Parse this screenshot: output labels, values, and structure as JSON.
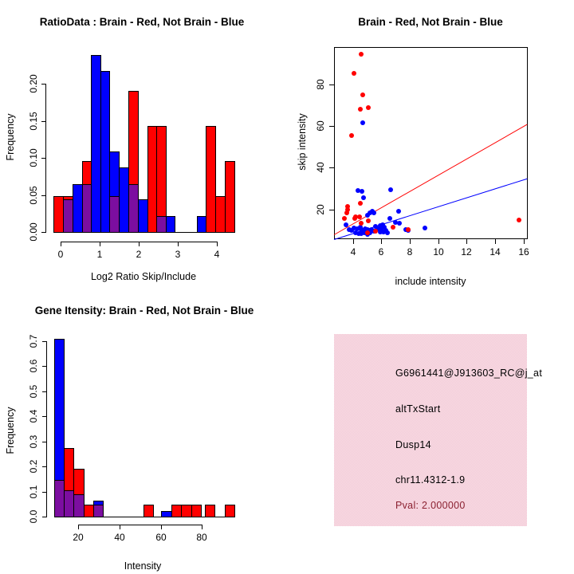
{
  "colors": {
    "red": "#ff0000",
    "blue": "#0000ff",
    "overlap_purple": "#7c0ea0",
    "info_bg": "#f3c9d6",
    "pval_text": "#8b2030",
    "axis": "#000000"
  },
  "chart_data": [
    {
      "id": "ratio_hist",
      "type": "bar",
      "title": "RatioData : Brain - Red, Not Brain - Blue",
      "xlabel": "Log2 Ratio Skip/Include",
      "ylabel": "Frequency",
      "xticks": [
        0,
        1,
        2,
        3,
        4
      ],
      "yticks": [
        "0.00",
        "0.05",
        "0.10",
        "0.15",
        "0.20"
      ],
      "xlim": [
        -0.2,
        4.45
      ],
      "ylim": [
        0,
        0.24
      ],
      "series": [
        {
          "name": "Brain",
          "color": "red"
        },
        {
          "name": "Not Brain",
          "color": "blue"
        }
      ],
      "bars": [
        {
          "x0": -0.18,
          "x1": 0.06,
          "red": 0.048,
          "blue": 0
        },
        {
          "x0": 0.06,
          "x1": 0.3,
          "red": 0.048,
          "blue": 0.044
        },
        {
          "x0": 0.3,
          "x1": 0.54,
          "red": 0,
          "blue": 0.065
        },
        {
          "x0": 0.54,
          "x1": 0.78,
          "red": 0.096,
          "blue": 0.065
        },
        {
          "x0": 0.78,
          "x1": 1.01,
          "red": 0,
          "blue": 0.239
        },
        {
          "x0": 1.01,
          "x1": 1.25,
          "red": 0,
          "blue": 0.218
        },
        {
          "x0": 1.25,
          "x1": 1.49,
          "red": 0.048,
          "blue": 0.109
        },
        {
          "x0": 1.49,
          "x1": 1.73,
          "red": 0,
          "blue": 0.087
        },
        {
          "x0": 1.73,
          "x1": 1.97,
          "red": 0.191,
          "blue": 0.065
        },
        {
          "x0": 1.97,
          "x1": 2.21,
          "red": 0,
          "blue": 0.044
        },
        {
          "x0": 2.21,
          "x1": 2.44,
          "red": 0.143,
          "blue": 0
        },
        {
          "x0": 2.44,
          "x1": 2.68,
          "red": 0.143,
          "blue": 0.022
        },
        {
          "x0": 2.68,
          "x1": 2.92,
          "red": 0,
          "blue": 0.022
        },
        {
          "x0": 3.48,
          "x1": 3.71,
          "red": 0,
          "blue": 0.022
        },
        {
          "x0": 3.71,
          "x1": 3.95,
          "red": 0.143,
          "blue": 0
        },
        {
          "x0": 3.95,
          "x1": 4.19,
          "red": 0.048,
          "blue": 0
        },
        {
          "x0": 4.19,
          "x1": 4.43,
          "red": 0.096,
          "blue": 0
        }
      ]
    },
    {
      "id": "intensity_scatter",
      "type": "scatter",
      "title": "Brain - Red, Not Brain - Blue",
      "xlabel": "include intensity",
      "ylabel": "skip intensity",
      "xticks": [
        4,
        6,
        8,
        10,
        12,
        14,
        16
      ],
      "yticks": [
        20,
        40,
        60,
        80
      ],
      "xlim": [
        2.69,
        16.28
      ],
      "ylim": [
        5.7,
        97.9
      ],
      "series": [
        {
          "name": "Brain",
          "color": "red"
        },
        {
          "name": "Not Brain",
          "color": "blue"
        }
      ],
      "red_points": [
        [
          4.6,
          94.5
        ],
        [
          4.1,
          85.5
        ],
        [
          4.7,
          75
        ],
        [
          4.5,
          68
        ],
        [
          5.1,
          69
        ],
        [
          3.9,
          55.5
        ],
        [
          3.6,
          21.5
        ],
        [
          3.65,
          19.8
        ],
        [
          3.55,
          18.2
        ],
        [
          3.4,
          15.5
        ],
        [
          4.5,
          23
        ],
        [
          4.2,
          16.6
        ],
        [
          4.45,
          16.3
        ],
        [
          4.15,
          15.8
        ],
        [
          5.1,
          14.5
        ],
        [
          4.6,
          13.2
        ],
        [
          5.0,
          8.8
        ],
        [
          5.6,
          9.5
        ],
        [
          6.8,
          11.5
        ],
        [
          7.9,
          10.2
        ],
        [
          15.7,
          15
        ]
      ],
      "blue_points": [
        [
          4.7,
          61.5
        ],
        [
          4.35,
          29
        ],
        [
          4.65,
          28.5
        ],
        [
          4.75,
          25.5
        ],
        [
          6.65,
          29.3
        ],
        [
          5.2,
          18.5
        ],
        [
          5.35,
          19
        ],
        [
          5.5,
          18.3
        ],
        [
          5.05,
          17.2
        ],
        [
          7.2,
          19
        ],
        [
          6.6,
          15.7
        ],
        [
          7.0,
          13.6
        ],
        [
          7.25,
          13.4
        ],
        [
          6.1,
          12.7
        ],
        [
          7.7,
          10.2
        ],
        [
          7.9,
          9.9
        ],
        [
          9.05,
          11
        ],
        [
          3.5,
          12.8
        ],
        [
          3.75,
          10.5
        ],
        [
          3.9,
          9.8
        ],
        [
          4.1,
          11.2
        ],
        [
          4.3,
          10.8
        ],
        [
          4.5,
          11.5
        ],
        [
          4.55,
          10.2
        ],
        [
          4.7,
          9.5
        ],
        [
          4.85,
          10.8
        ],
        [
          4.9,
          9.2
        ],
        [
          5.0,
          10.5
        ],
        [
          5.1,
          9.8
        ],
        [
          5.2,
          8.8
        ],
        [
          5.3,
          10.2
        ],
        [
          5.45,
          9.5
        ],
        [
          5.6,
          11.8
        ],
        [
          5.75,
          10.8
        ],
        [
          5.9,
          9.2
        ],
        [
          6.0,
          10.5
        ],
        [
          6.15,
          9.0
        ],
        [
          6.3,
          9.8
        ],
        [
          6.45,
          8.6
        ],
        [
          4.2,
          8.8
        ],
        [
          4.4,
          8.5
        ],
        [
          4.6,
          8.3
        ],
        [
          4.8,
          8.6
        ],
        [
          5.0,
          8.2
        ],
        [
          5.9,
          12.2
        ],
        [
          6.2,
          11.5
        ]
      ],
      "red_line": [
        [
          2.69,
          8
        ],
        [
          16.28,
          61
        ]
      ],
      "blue_line": [
        [
          2.69,
          5.8
        ],
        [
          16.28,
          35
        ]
      ]
    },
    {
      "id": "gene_hist",
      "type": "bar",
      "title": "Gene Itensity: Brain - Red, Not Brain - Blue",
      "xlabel": "Intensity",
      "ylabel": "Frequency",
      "xticks": [
        20,
        40,
        60,
        80
      ],
      "yticks": [
        "0.0",
        "0.1",
        "0.2",
        "0.3",
        "0.4",
        "0.5",
        "0.6",
        "0.7"
      ],
      "xlim": [
        8,
        96
      ],
      "ylim": [
        0,
        0.72
      ],
      "series": [
        {
          "name": "Brain",
          "color": "red"
        },
        {
          "name": "Not Brain",
          "color": "blue"
        }
      ],
      "bars": [
        {
          "x0": 8.2,
          "x1": 12.9,
          "red": 0.145,
          "blue": 0.71
        },
        {
          "x0": 12.9,
          "x1": 17.7,
          "red": 0.275,
          "blue": 0.105
        },
        {
          "x0": 17.7,
          "x1": 22.5,
          "red": 0.19,
          "blue": 0.088
        },
        {
          "x0": 22.5,
          "x1": 27.2,
          "red": 0.048,
          "blue": 0
        },
        {
          "x0": 27.2,
          "x1": 32.0,
          "red": 0.048,
          "blue": 0.065
        },
        {
          "x0": 51.6,
          "x1": 56.4,
          "red": 0.048,
          "blue": 0
        },
        {
          "x0": 60.2,
          "x1": 65.1,
          "red": 0,
          "blue": 0.022
        },
        {
          "x0": 65.1,
          "x1": 69.9,
          "red": 0.048,
          "blue": 0
        },
        {
          "x0": 69.9,
          "x1": 74.7,
          "red": 0.048,
          "blue": 0
        },
        {
          "x0": 74.7,
          "x1": 79.5,
          "red": 0.048,
          "blue": 0
        },
        {
          "x0": 81.3,
          "x1": 86.1,
          "red": 0.048,
          "blue": 0
        },
        {
          "x0": 91.0,
          "x1": 95.8,
          "red": 0.048,
          "blue": 0
        }
      ]
    }
  ],
  "info_box": {
    "probe": "G6961441@J913603_RC@j_at",
    "event_type": "altTxStart",
    "gene": "Dusp14",
    "location": "chr11.4312-1.9",
    "pval": "Pval: 2.000000"
  }
}
